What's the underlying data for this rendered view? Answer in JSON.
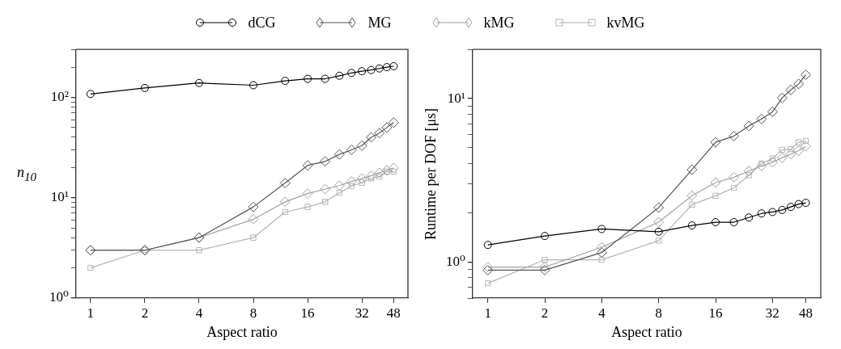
{
  "chart_data": [
    {
      "type": "line",
      "xlabel": "Aspect ratio",
      "ylabel": "n$_{10}$",
      "log": "xy",
      "legend": "top",
      "grid": false,
      "line_style": "solid",
      "x": [
        1,
        2,
        4,
        8,
        12,
        16,
        20,
        24,
        28,
        32,
        36,
        40,
        44,
        48
      ],
      "xlim": [
        0.83,
        57.6
      ],
      "xticks": [
        1,
        2,
        4,
        8,
        16,
        32,
        48
      ],
      "ylim": [
        1,
        300
      ],
      "yticks": [
        {
          "value": 1,
          "label": "10⁰"
        },
        {
          "value": 2,
          "label": null
        },
        {
          "value": 3,
          "label": null
        },
        {
          "value": 4,
          "label": null
        },
        {
          "value": 5,
          "label": null
        },
        {
          "value": 6,
          "label": null
        },
        {
          "value": 7,
          "label": null
        },
        {
          "value": 8,
          "label": null
        },
        {
          "value": 9,
          "label": null
        },
        {
          "value": 10,
          "label": "10¹"
        },
        {
          "value": 20,
          "label": null
        },
        {
          "value": 30,
          "label": null
        },
        {
          "value": 40,
          "label": null
        },
        {
          "value": 50,
          "label": null
        },
        {
          "value": 60,
          "label": null
        },
        {
          "value": 70,
          "label": null
        },
        {
          "value": 80,
          "label": null
        },
        {
          "value": 90,
          "label": null
        },
        {
          "value": 100,
          "label": "10²"
        },
        {
          "value": 200,
          "label": null
        },
        {
          "value": 300,
          "label": null
        }
      ],
      "series": [
        {
          "name": "dCG",
          "color": "#000000",
          "marker": "circle",
          "values": [
            108,
            124,
            139,
            132,
            146,
            153,
            153,
            164,
            175,
            182,
            187,
            194,
            200,
            204
          ]
        },
        {
          "name": "MG",
          "color": "#555555",
          "marker": "diamond",
          "values": [
            3,
            3,
            4,
            8.1,
            14,
            21,
            23,
            27,
            30,
            33,
            40,
            44,
            50,
            56
          ]
        },
        {
          "name": "kMG",
          "color": "#a0a0a0",
          "marker": "diamond",
          "values": [
            3,
            3,
            4,
            6.1,
            9.1,
            11,
            12.2,
            13.2,
            14.5,
            15.5,
            16.5,
            17.7,
            18.7,
            19.8
          ]
        },
        {
          "name": "kvMG",
          "color": "#b4b4b4",
          "marker": "square",
          "values": [
            2,
            3,
            3,
            4,
            7.2,
            8.1,
            9.1,
            11.2,
            13.1,
            14.1,
            15.6,
            16.2,
            18.2,
            18.2
          ]
        }
      ]
    },
    {
      "type": "line",
      "xlabel": "Aspect ratio",
      "ylabel": "Runtime per DOF [μs]",
      "log": "xy",
      "grid": false,
      "line_style": "solid",
      "x": [
        1,
        2,
        4,
        8,
        12,
        16,
        20,
        24,
        28,
        32,
        36,
        40,
        44,
        48
      ],
      "xlim": [
        0.83,
        57.6
      ],
      "xticks": [
        1,
        2,
        4,
        8,
        16,
        32,
        48
      ],
      "ylim": [
        0.6,
        20
      ],
      "yticks": [
        {
          "value": 0.6,
          "label": null
        },
        {
          "value": 0.7,
          "label": null
        },
        {
          "value": 0.8,
          "label": null
        },
        {
          "value": 0.9,
          "label": null
        },
        {
          "value": 1,
          "label": "10⁰"
        },
        {
          "value": 2,
          "label": null
        },
        {
          "value": 3,
          "label": null
        },
        {
          "value": 4,
          "label": null
        },
        {
          "value": 5,
          "label": null
        },
        {
          "value": 6,
          "label": null
        },
        {
          "value": 7,
          "label": null
        },
        {
          "value": 8,
          "label": null
        },
        {
          "value": 9,
          "label": null
        },
        {
          "value": 10,
          "label": "10¹"
        },
        {
          "value": 20,
          "label": null
        }
      ],
      "series": [
        {
          "color": "#000000",
          "marker": "circle",
          "values": [
            1.27,
            1.44,
            1.59,
            1.53,
            1.67,
            1.75,
            1.75,
            1.87,
            1.98,
            2.02,
            2.08,
            2.17,
            2.26,
            2.3
          ]
        },
        {
          "color": "#555555",
          "marker": "diamond",
          "values": [
            0.89,
            0.89,
            1.14,
            2.15,
            3.67,
            5.4,
            5.9,
            6.8,
            7.5,
            8.3,
            10.1,
            11.3,
            12.3,
            14
          ]
        },
        {
          "color": "#a0a0a0",
          "marker": "diamond",
          "values": [
            0.93,
            0.93,
            1.23,
            1.75,
            2.54,
            3.06,
            3.3,
            3.6,
            3.87,
            4.07,
            4.35,
            4.57,
            4.8,
            5.1
          ]
        },
        {
          "color": "#b4b4b4",
          "marker": "square",
          "values": [
            0.74,
            1.03,
            1.03,
            1.35,
            2.24,
            2.54,
            2.84,
            3.39,
            4.0,
            4.3,
            4.86,
            4.9,
            5.4,
            5.5
          ]
        }
      ]
    }
  ]
}
